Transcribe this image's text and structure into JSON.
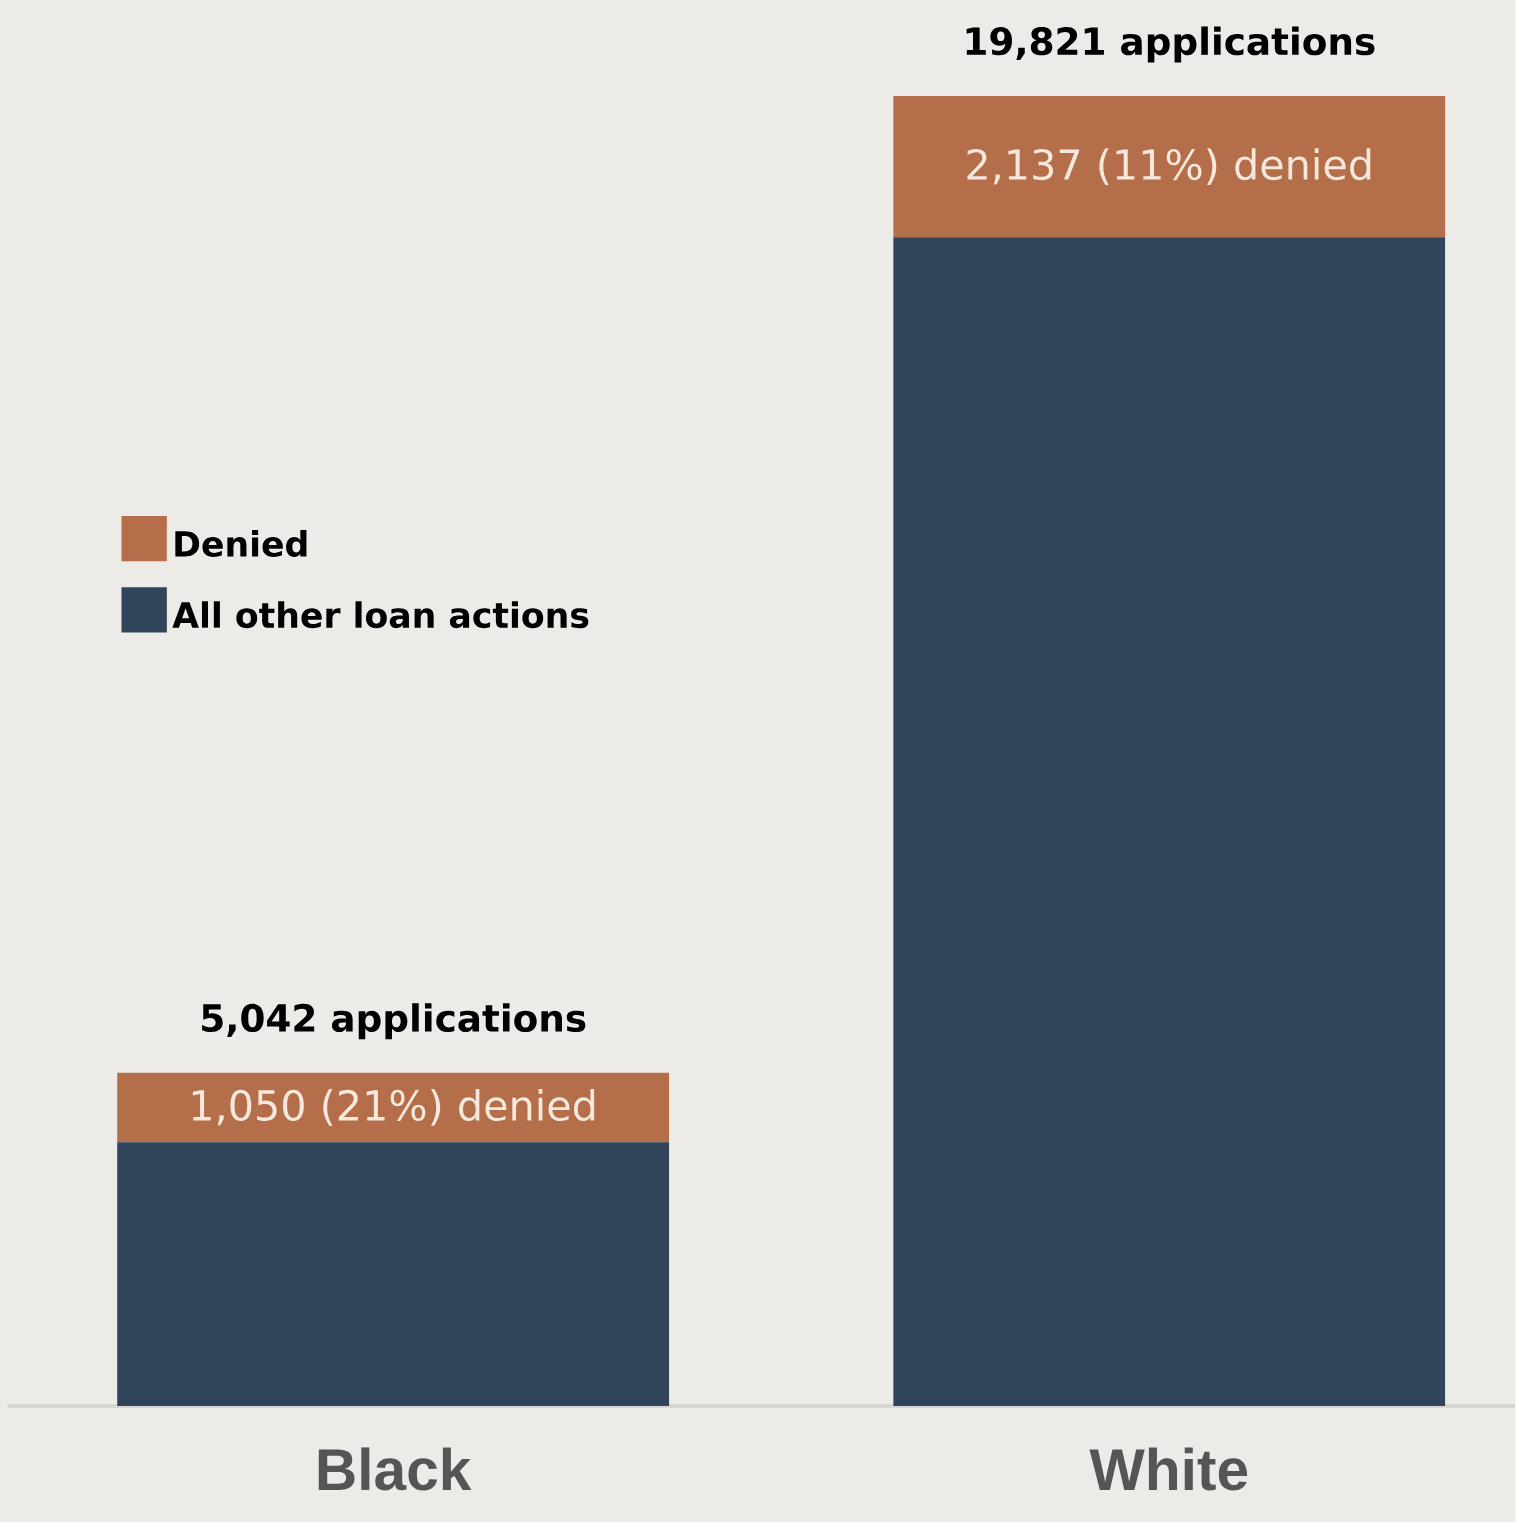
{
  "chart_data": {
    "type": "bar",
    "stacked": true,
    "categories": [
      "Black",
      "White"
    ],
    "series": [
      {
        "name": "All other loan actions",
        "color": "#30455a",
        "values": [
          3992,
          17684
        ]
      },
      {
        "name": "Denied",
        "color": "#b46f4a",
        "values": [
          1050,
          2137
        ],
        "value_labels": [
          "1,050 (21%) denied",
          "2,137 (11%) denied"
        ]
      }
    ],
    "totals": [
      "5,042 applications",
      "19,821 applications"
    ],
    "legend": "left"
  }
}
